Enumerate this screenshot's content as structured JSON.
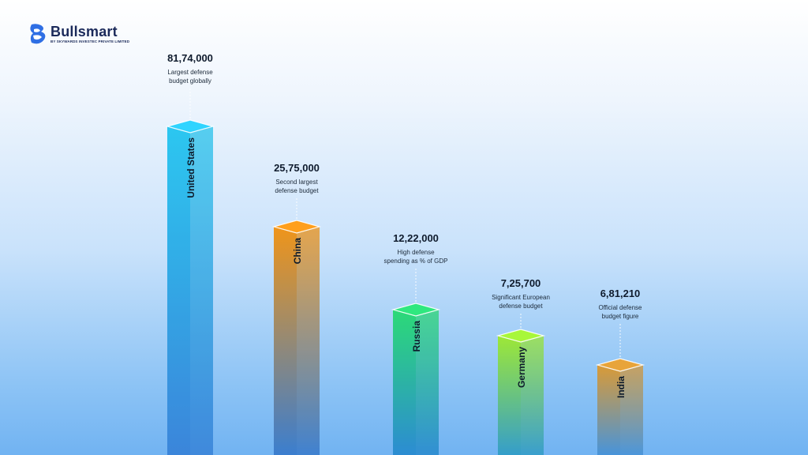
{
  "brand": {
    "name": "Bullsmart",
    "tagline": "BY SKYWARDS INVESTEC PRIVATE LIMITED"
  },
  "chart_data": {
    "type": "bar",
    "categories": [
      "United States",
      "China",
      "Russia",
      "Germany",
      "India"
    ],
    "values": [
      8174000,
      2575000,
      1222000,
      725700,
      681210
    ],
    "value_labels": [
      "81,74,000",
      "25,75,000",
      "12,22,000",
      "7,25,700",
      "6,81,210"
    ],
    "annotations": [
      [
        "Largest defense",
        "budget globally"
      ],
      [
        "Second largest",
        "defense budget"
      ],
      [
        "High defense",
        "spending as % of GDP"
      ],
      [
        "Significant European",
        "defense budget"
      ],
      [
        "Official defense",
        "budget figure"
      ]
    ],
    "colors": [
      [
        "#2fd4ff",
        "#3f8ee8"
      ],
      [
        "#ff9f1c",
        "#3f86dc"
      ],
      [
        "#2fe87f",
        "#2f95e0"
      ],
      [
        "#a8f73a",
        "#38a8d8"
      ],
      [
        "#e8a43a",
        "#4d9ee8"
      ]
    ],
    "grid": false,
    "legend": "none"
  }
}
